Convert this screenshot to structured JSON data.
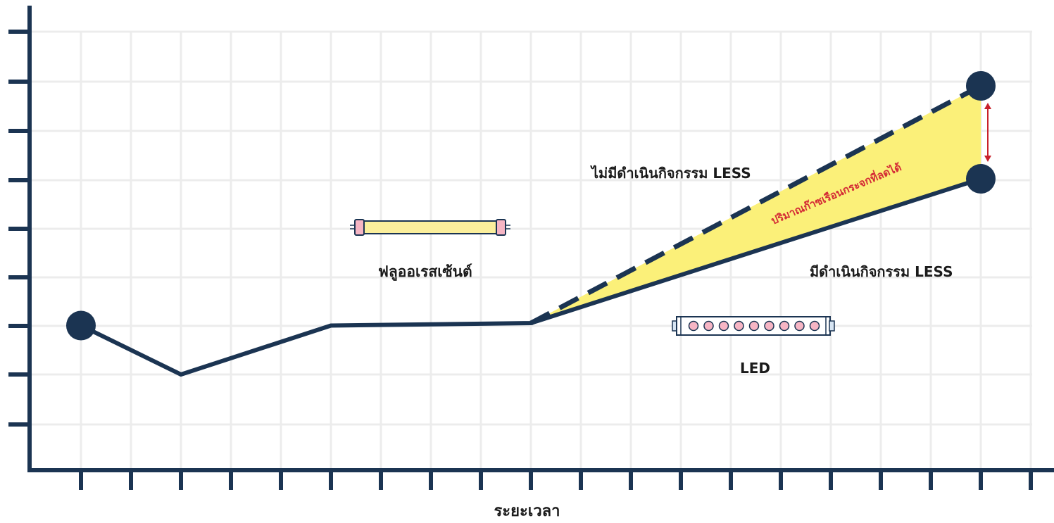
{
  "chart": {
    "xlabel": "ระยะเวลา",
    "grid": true,
    "x_ticks": 20,
    "y_ticks": 9
  },
  "chart_data": {
    "type": "line",
    "xlabel": "ระยะเวลา",
    "ylabel": "",
    "x": [
      0,
      2,
      5,
      9,
      18
    ],
    "series": [
      {
        "name": "มีดำเนินกิจกรรม LESS",
        "x": [
          0,
          2,
          5,
          9,
          18
        ],
        "values": [
          3,
          2,
          3,
          3.05,
          6
        ],
        "style": "solid"
      },
      {
        "name": "ไม่มีดำเนินกิจกรรม LESS",
        "x": [
          9,
          18
        ],
        "values": [
          3.05,
          7.9
        ],
        "style": "dashed"
      }
    ],
    "endpoints": [
      {
        "x": 0,
        "y": 3
      },
      {
        "x": 18,
        "y": 7.9
      },
      {
        "x": 18,
        "y": 6
      }
    ]
  },
  "annotations": {
    "no_less": "ไม่มีดำเนินกิจกรรม LESS",
    "with_less": "มีดำเนินกิจกรรม LESS",
    "reduced_gas": "ปริมาณก๊าซเรือนกระจกที่ลดได้",
    "fluorescent": "ฟลูออเรสเซ้นต์",
    "led": "LED"
  },
  "colors": {
    "axis": "#1b3452",
    "line": "#1b3452",
    "grid": "#ececec",
    "fill": "#fbf079",
    "arrow": "#c8202a",
    "reduced_text": "#d42b35",
    "tube_body": "#fbef9c",
    "tube_cap": "#f6b5c4",
    "led_body": "#ffffff",
    "led_dot": "#f6b5c4"
  },
  "icons": {
    "fluorescent": "fluorescent-tube-icon",
    "led": "led-tube-icon"
  }
}
